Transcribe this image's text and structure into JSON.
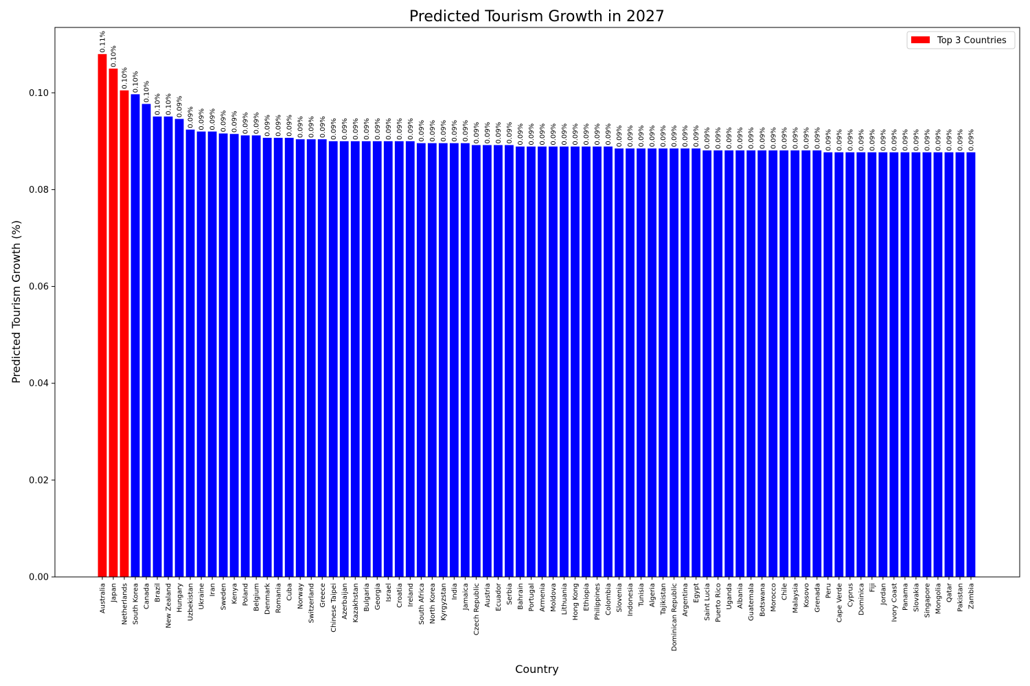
{
  "chart_data": {
    "type": "bar",
    "title": "Predicted Tourism Growth in 2027",
    "xlabel": "Country",
    "ylabel": "Predicted Tourism Growth (%)",
    "ylim": [
      0,
      0.1135
    ],
    "yticks": [
      "0.00",
      "0.02",
      "0.04",
      "0.06",
      "0.08",
      "0.10"
    ],
    "ytick_values": [
      0,
      0.02,
      0.04,
      0.06,
      0.08,
      0.1
    ],
    "grid": false,
    "legend": {
      "label": "Top 3 Countries",
      "placement": "top-right",
      "color": "#ff0000"
    },
    "colors": {
      "highlight": "#ff0000",
      "default": "#0000ff"
    },
    "highlight_count": 3,
    "categories": [
      "Australia",
      "Japan",
      "Netherlands",
      "South Korea",
      "Canada",
      "Brazil",
      "New Zealand",
      "Hungary",
      "Uzbekistan",
      "Ukraine",
      "Iran",
      "Sweden",
      "Kenya",
      "Poland",
      "Belgium",
      "Denmark",
      "Romania",
      "Cuba",
      "Norway",
      "Switzerland",
      "Greece",
      "Chinese Taipei",
      "Azerbaijan",
      "Kazakhstan",
      "Bulgaria",
      "Georgia",
      "Israel",
      "Croatia",
      "Ireland",
      "South Africa",
      "North Korea",
      "Kyrgyzstan",
      "India",
      "Jamaica",
      "Czech Republic",
      "Austria",
      "Ecuador",
      "Serbia",
      "Bahrain",
      "Portugal",
      "Armenia",
      "Moldova",
      "Lithuania",
      "Hong Kong",
      "Ethiopia",
      "Philippines",
      "Colombia",
      "Slovenia",
      "Indonesia",
      "Tunisia",
      "Algeria",
      "Tajikistan",
      "Dominican Republic",
      "Argentina",
      "Egypt",
      "Saint Lucia",
      "Puerto Rico",
      "Uganda",
      "Albania",
      "Guatemala",
      "Botswana",
      "Morocco",
      "Chile",
      "Malaysia",
      "Kosovo",
      "Grenada",
      "Peru",
      "Cape Verde",
      "Cyprus",
      "Dominica",
      "Fiji",
      "Jordan",
      "Ivory Coast",
      "Panama",
      "Slovakia",
      "Singapore",
      "Mongolia",
      "Qatar",
      "Pakistan",
      "Zambia"
    ],
    "values": [
      0.108,
      0.105,
      0.1005,
      0.0997,
      0.0977,
      0.0951,
      0.0951,
      0.0946,
      0.0924,
      0.092,
      0.092,
      0.0916,
      0.0915,
      0.0912,
      0.0912,
      0.0907,
      0.0907,
      0.0907,
      0.0904,
      0.0904,
      0.0904,
      0.09,
      0.09,
      0.09,
      0.09,
      0.09,
      0.09,
      0.09,
      0.09,
      0.0896,
      0.0896,
      0.0896,
      0.0896,
      0.0896,
      0.0892,
      0.0892,
      0.0892,
      0.0892,
      0.0889,
      0.0889,
      0.0889,
      0.0889,
      0.0889,
      0.0889,
      0.0889,
      0.0889,
      0.0889,
      0.0885,
      0.0885,
      0.0885,
      0.0885,
      0.0885,
      0.0885,
      0.0885,
      0.0885,
      0.0881,
      0.0881,
      0.0881,
      0.0881,
      0.0881,
      0.0881,
      0.0881,
      0.0881,
      0.0881,
      0.0881,
      0.0881,
      0.0877,
      0.0877,
      0.0877,
      0.0877,
      0.0877,
      0.0877,
      0.0877,
      0.0877,
      0.0877,
      0.0877,
      0.0877,
      0.0877,
      0.0877,
      0.0877
    ],
    "value_labels": [
      "0.11%",
      "0.10%",
      "0.10%",
      "0.10%",
      "0.10%",
      "0.10%",
      "0.10%",
      "0.09%",
      "0.09%",
      "0.09%",
      "0.09%",
      "0.09%",
      "0.09%",
      "0.09%",
      "0.09%",
      "0.09%",
      "0.09%",
      "0.09%",
      "0.09%",
      "0.09%",
      "0.09%",
      "0.09%",
      "0.09%",
      "0.09%",
      "0.09%",
      "0.09%",
      "0.09%",
      "0.09%",
      "0.09%",
      "0.09%",
      "0.09%",
      "0.09%",
      "0.09%",
      "0.09%",
      "0.09%",
      "0.09%",
      "0.09%",
      "0.09%",
      "0.09%",
      "0.09%",
      "0.09%",
      "0.09%",
      "0.09%",
      "0.09%",
      "0.09%",
      "0.09%",
      "0.09%",
      "0.09%",
      "0.09%",
      "0.09%",
      "0.09%",
      "0.09%",
      "0.09%",
      "0.09%",
      "0.09%",
      "0.09%",
      "0.09%",
      "0.09%",
      "0.09%",
      "0.09%",
      "0.09%",
      "0.09%",
      "0.09%",
      "0.09%",
      "0.09%",
      "0.09%",
      "0.09%",
      "0.09%",
      "0.09%",
      "0.09%",
      "0.09%",
      "0.09%",
      "0.09%",
      "0.09%",
      "0.09%",
      "0.09%",
      "0.09%",
      "0.09%",
      "0.09%",
      "0.09%"
    ]
  }
}
